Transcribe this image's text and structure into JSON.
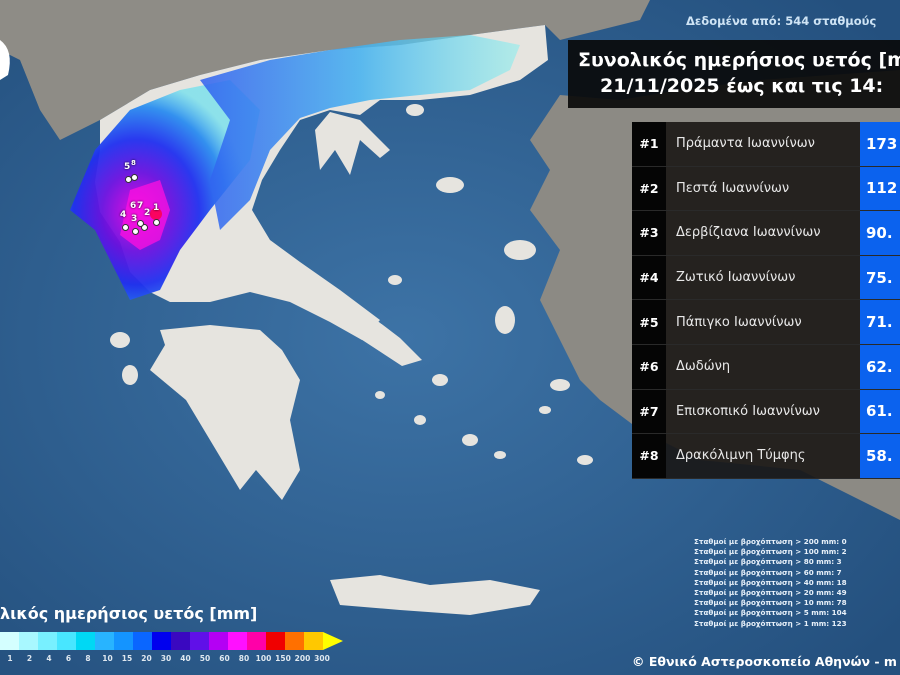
{
  "header": {
    "source": "Δεδομένα από: 544 σταθμούς",
    "title_line1": "Συνολικός ημερήσιος υετός [m",
    "title_line2": "21/11/2025 έως και τις 14:"
  },
  "ranking": [
    {
      "rank": "#1",
      "station": "Πράμαντα Ιωαννίνων",
      "value": "173"
    },
    {
      "rank": "#2",
      "station": "Πεστά Ιωαννίνων",
      "value": "112"
    },
    {
      "rank": "#3",
      "station": "Δερβίζιανα Ιωαννίνων",
      "value": "90."
    },
    {
      "rank": "#4",
      "station": "Ζωτικό Ιωαννίνων",
      "value": "75."
    },
    {
      "rank": "#5",
      "station": "Πάπιγκο Ιωαννίνων",
      "value": "71."
    },
    {
      "rank": "#6",
      "station": "Δωδώνη",
      "value": "62."
    },
    {
      "rank": "#7",
      "station": "Επισκοπικό Ιωαννίνων",
      "value": "61."
    },
    {
      "rank": "#8",
      "station": "Δρακόλιμνη Τύμφης",
      "value": "58."
    }
  ],
  "stats": [
    "Σταθμοί με βροχόπτωση > 200 mm: 0",
    "Σταθμοί με βροχόπτωση > 100 mm: 2",
    "Σταθμοί με βροχόπτωση > 80 mm: 3",
    "Σταθμοί με βροχόπτωση > 60 mm: 7",
    "Σταθμοί με βροχόπτωση > 40 mm: 18",
    "Σταθμοί με βροχόπτωση > 20 mm: 49",
    "Σταθμοί με βροχόπτωση > 10 mm: 78",
    "Σταθμοί με βροχόπτωση > 5 mm: 104",
    "Σταθμοί με βροχόπτωση > 1 mm: 123"
  ],
  "legend": {
    "title": "λικός ημερήσιος υετός [mm]",
    "ticks": [
      "1",
      "2",
      "4",
      "6",
      "8",
      "10",
      "15",
      "20",
      "30",
      "40",
      "50",
      "60",
      "80",
      "100",
      "150",
      "200",
      "300"
    ],
    "colors": [
      "#d4ffff",
      "#a8f8ff",
      "#78f0ff",
      "#48e6ff",
      "#00d8f4",
      "#28b4ff",
      "#1494ff",
      "#0a66ff",
      "#0000ee",
      "#3a08c0",
      "#6010e8",
      "#b400f4",
      "#ff10ff",
      "#ff00a8",
      "#f00000",
      "#ff7000",
      "#ffc800"
    ],
    "arrow_color": "#ffff00"
  },
  "station_markers": [
    "5",
    "8",
    "6",
    "7",
    "4",
    "3",
    "2",
    "1"
  ],
  "copyright": "© Εθνικό Αστεροσκοπείο Αθηνών - m",
  "colors": {
    "sea": "#2f5f8f",
    "value_column": "#0b62ee",
    "land": "#e6e4df"
  }
}
